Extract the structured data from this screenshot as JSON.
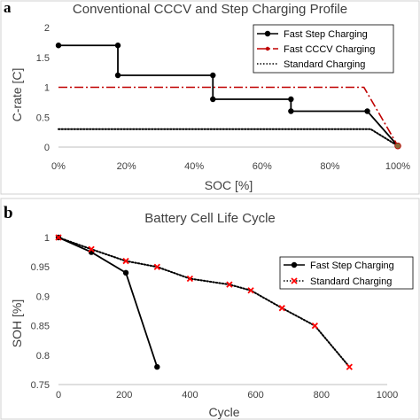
{
  "chart_data": [
    {
      "type": "line",
      "panel_label": "a",
      "title": "Conventional CCCV and Step Charging Profile",
      "xlabel": "SOC [%]",
      "ylabel": "C-rate [C]",
      "xlim": [
        0,
        100
      ],
      "ylim": [
        0,
        2
      ],
      "xticks": [
        0,
        20,
        40,
        60,
        80,
        100
      ],
      "xtick_labels": [
        "0%",
        "20%",
        "40%",
        "60%",
        "80%",
        "100%"
      ],
      "yticks": [
        0,
        0.5,
        1,
        1.5,
        2
      ],
      "ytick_labels": [
        "0",
        "0.5",
        "1",
        "1.5",
        "2"
      ],
      "grid": false,
      "legend_position": "top-right",
      "series": [
        {
          "name": "Fast Step Charging",
          "color": "#000000",
          "style": "solid",
          "marker": "circle",
          "x": [
            0,
            17.5,
            17.5,
            45.5,
            45.5,
            68.5,
            68.5,
            91,
            100
          ],
          "y": [
            1.7,
            1.7,
            1.2,
            1.2,
            0.8,
            0.8,
            0.6,
            0.6,
            0.02
          ]
        },
        {
          "name": "Fast CCCV Charging",
          "color": "#c00000",
          "style": "dashdot",
          "marker": "dot",
          "x": [
            0,
            90,
            100
          ],
          "y": [
            1.0,
            1.0,
            0.02
          ]
        },
        {
          "name": "Standard Charging",
          "color": "#000000",
          "style": "dotted",
          "marker": "none",
          "x": [
            0,
            92,
            100
          ],
          "y": [
            0.3,
            0.3,
            0.02
          ]
        }
      ]
    },
    {
      "type": "line",
      "panel_label": "b",
      "title": "Battery Cell Life Cycle",
      "xlabel": "Cycle",
      "ylabel": "SOH [%]",
      "xlim": [
        0,
        1000
      ],
      "ylim": [
        0.75,
        1
      ],
      "xticks": [
        0,
        200,
        400,
        600,
        800,
        1000
      ],
      "xtick_labels": [
        "0",
        "200",
        "400",
        "600",
        "800",
        "1000"
      ],
      "yticks": [
        0.75,
        0.8,
        0.85,
        0.9,
        0.95,
        1
      ],
      "ytick_labels": [
        "0.75",
        "0.8",
        "0.85",
        "0.9",
        "0.95",
        "1"
      ],
      "grid": false,
      "legend_position": "top-right",
      "series": [
        {
          "name": "Fast Step Charging",
          "color": "#000000",
          "style": "solid",
          "marker": "circle",
          "x": [
            0,
            100,
            205,
            300
          ],
          "y": [
            1.0,
            0.975,
            0.94,
            0.78
          ]
        },
        {
          "name": "Standard Charging",
          "color": "#000000",
          "marker_color": "#ff0000",
          "style": "dotted",
          "marker": "x",
          "x": [
            0,
            100,
            205,
            300,
            400,
            520,
            585,
            680,
            780,
            885
          ],
          "y": [
            1.0,
            0.98,
            0.96,
            0.95,
            0.93,
            0.92,
            0.91,
            0.88,
            0.85,
            0.78
          ]
        }
      ]
    }
  ]
}
